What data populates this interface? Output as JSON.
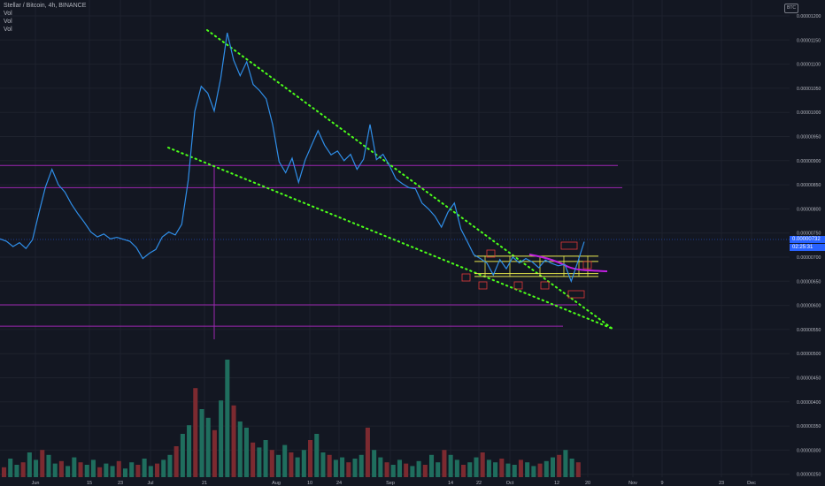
{
  "header": {
    "symbol_title": "Stellar / Bitcoin, 4h, BINANCE",
    "indicators": [
      "Vol",
      "Vol",
      "Vol"
    ],
    "currency_badge": "BTC"
  },
  "price_axis": {
    "current_price": "0.00000732",
    "countdown": "02:25:31"
  },
  "colors": {
    "background": "#131722",
    "price_line": "#2f8ee8",
    "trendline": "#4cff1a",
    "hline": "#9c27b0",
    "range_box": "#e6e64c",
    "moving_avg": "#c020e0",
    "signal": "#e23a3a",
    "vol_up": "#1f6e5e",
    "vol_down": "#7c2a30",
    "tag_bg": "#2962ff"
  },
  "chart_data": {
    "type": "line",
    "title": "Stellar / Bitcoin, 4h, BINANCE",
    "xlabel": "",
    "ylabel": "",
    "y_ticks": [
      "0.00001200",
      "0.00001150",
      "0.00001100",
      "0.00001050",
      "0.00001000",
      "0.00000950",
      "0.00000900",
      "0.00000850",
      "0.00000800",
      "0.00000750",
      "0.00000700",
      "0.00000650",
      "0.00000600",
      "0.00000550",
      "0.00000500",
      "0.00000450",
      "0.00000400",
      "0.00000350",
      "0.00000300",
      "0.00000250"
    ],
    "x_ticks": [
      "Jun",
      "15",
      "23",
      "Jul",
      "21",
      "Aug",
      "10",
      "24",
      "Sep",
      "14",
      "22",
      "Oct",
      "12",
      "20",
      "Nov",
      "9",
      "23",
      "Dec"
    ],
    "ylim": [
      2.43e-06,
      1.206e-05
    ],
    "grid": true,
    "series": [
      {
        "values": [
          7.38e-06,
          7.33e-06,
          7.22e-06,
          7.3e-06,
          7.18e-06,
          7.36e-06,
          7.92e-06,
          8.45e-06,
          8.82e-06,
          8.5e-06,
          8.35e-06,
          8.1e-06,
          7.9e-06,
          7.72e-06,
          7.52e-06,
          7.42e-06,
          7.48e-06,
          7.38e-06,
          7.41e-06,
          7.37e-06,
          7.33e-06,
          7.2e-06,
          6.97e-06,
          7.08e-06,
          7.16e-06,
          7.42e-06,
          7.52e-06,
          7.46e-06,
          7.68e-06,
          8.6e-06,
          1.002e-05,
          1.054e-05,
          1.04e-05,
          1.003e-05,
          1.07e-05,
          1.165e-05,
          1.108e-05,
          1.076e-05,
          1.105e-05,
          1.058e-05,
          1.045e-05,
          1.028e-05,
          9.75e-06,
          8.98e-06,
          8.75e-06,
          9.05e-06,
          8.55e-06,
          9.01e-06,
          9.32e-06,
          9.62e-06,
          9.32e-06,
          9.12e-06,
          9.2e-06,
          9e-06,
          9.13e-06,
          8.82e-06,
          9.03e-06,
          9.75e-06,
          9.02e-06,
          9.13e-06,
          8.9e-06,
          8.62e-06,
          8.52e-06,
          8.44e-06,
          8.42e-06,
          8.12e-06,
          8e-06,
          7.85e-06,
          7.62e-06,
          7.93e-06,
          8.12e-06,
          7.58e-06,
          7.32e-06,
          7.05e-06,
          6.97e-06,
          6.88e-06,
          6.63e-06,
          6.95e-06,
          6.76e-06,
          7e-06,
          6.88e-06,
          6.97e-06,
          6.9e-06,
          6.78e-06,
          6.94e-06,
          6.87e-06,
          6.82e-06,
          6.85e-06,
          6.5e-06,
          6.9e-06,
          7.32e-06
        ]
      }
    ],
    "horizontal_levels": [
      8.9e-06,
      8.44e-06,
      6.01e-06,
      5.57e-06
    ],
    "range_levels": [
      7.02e-06,
      6.91e-06,
      6.66e-06,
      6.6e-06
    ],
    "signal_labels": [
      "",
      "",
      "",
      "",
      "",
      "",
      "",
      ""
    ],
    "volume": [
      0.08,
      0.15,
      0.1,
      0.12,
      0.2,
      0.14,
      0.22,
      0.18,
      0.11,
      0.13,
      0.09,
      0.16,
      0.12,
      0.1,
      0.14,
      0.08,
      0.11,
      0.09,
      0.13,
      0.07,
      0.12,
      0.1,
      0.15,
      0.09,
      0.11,
      0.14,
      0.18,
      0.25,
      0.35,
      0.42,
      0.72,
      0.55,
      0.48,
      0.38,
      0.62,
      0.95,
      0.58,
      0.45,
      0.4,
      0.28,
      0.24,
      0.3,
      0.22,
      0.18,
      0.26,
      0.2,
      0.16,
      0.22,
      0.3,
      0.35,
      0.2,
      0.18,
      0.14,
      0.16,
      0.12,
      0.15,
      0.18,
      0.4,
      0.22,
      0.16,
      0.12,
      0.1,
      0.14,
      0.11,
      0.09,
      0.13,
      0.1,
      0.18,
      0.12,
      0.22,
      0.18,
      0.14,
      0.1,
      0.12,
      0.16,
      0.2,
      0.14,
      0.12,
      0.15,
      0.11,
      0.1,
      0.14,
      0.12,
      0.09,
      0.11,
      0.13,
      0.16,
      0.18,
      0.22,
      0.15,
      0.12
    ]
  }
}
